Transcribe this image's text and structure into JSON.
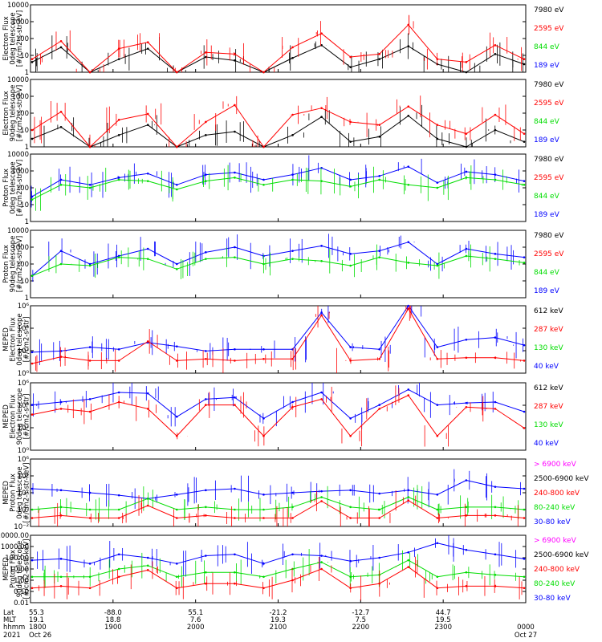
{
  "chart_data": {
    "type": "line",
    "x_range": [
      "1800 Oct 26",
      "0000 Oct 27"
    ],
    "x_ticks": [
      "1800",
      "1900",
      "2000",
      "2100",
      "2200",
      "2300",
      "0000"
    ],
    "panels": [
      {
        "ylabel": [
          "Electron Flux",
          "0deg telescope",
          "[#/cm2-s-str-eV]"
        ],
        "yscale": "log",
        "ylim": [
          1,
          10000
        ],
        "yticks": [
          "10000",
          "1000",
          "100",
          "10",
          "1"
        ],
        "legend": [
          {
            "name": "7980 eV",
            "color": "#000000"
          },
          {
            "name": "2595 eV",
            "color": "#ff0000"
          },
          {
            "name": "844 eV",
            "color": "#00dd00"
          },
          {
            "name": "189 eV",
            "color": "#0000ff"
          }
        ],
        "series": [
          {
            "name": "7980 eV",
            "color": "#000000",
            "values": [
              4,
              30,
              0,
              6,
              25,
              0,
              8,
              5,
              0,
              7,
              40,
              2,
              6,
              35,
              3,
              1,
              12,
              3
            ]
          },
          {
            "name": "2595 eV",
            "color": "#ff0000",
            "values": [
              6,
              70,
              0,
              25,
              60,
              0,
              15,
              12,
              0,
              30,
              200,
              8,
              12,
              650,
              6,
              4,
              40,
              6
            ]
          }
        ]
      },
      {
        "ylabel": [
          "Electron Flux",
          "90deg telescope",
          "[#/cm2-s-str-eV]"
        ],
        "yscale": "log",
        "ylim": [
          1,
          10000
        ],
        "yticks": [
          "10000",
          "1000",
          "100",
          "10",
          "1"
        ],
        "legend": [
          {
            "name": "7980 eV",
            "color": "#000000"
          },
          {
            "name": "2595 eV",
            "color": "#ff0000"
          },
          {
            "name": "844 eV",
            "color": "#00dd00"
          },
          {
            "name": "189 eV",
            "color": "#0000ff"
          }
        ],
        "series": [
          {
            "name": "7980 eV",
            "color": "#000000",
            "values": [
              3,
              15,
              0,
              5,
              20,
              0,
              5,
              8,
              0,
              5,
              60,
              2,
              4,
              70,
              3,
              1,
              10,
              2
            ]
          },
          {
            "name": "2595 eV",
            "color": "#ff0000",
            "values": [
              10,
              120,
              0,
              40,
              90,
              0,
              30,
              300,
              0,
              80,
              200,
              30,
              20,
              250,
              20,
              6,
              80,
              6
            ]
          }
        ]
      },
      {
        "ylabel": [
          "Proton Flux",
          "0deg telescope",
          "[#/cm2-s-str-eV]"
        ],
        "yscale": "log",
        "ylim": [
          1,
          10000
        ],
        "yticks": [
          "10000",
          "1000",
          "100",
          "10",
          "1"
        ],
        "legend": [
          {
            "name": "7980 eV",
            "color": "#000000"
          },
          {
            "name": "2595 eV",
            "color": "#ff0000"
          },
          {
            "name": "844 eV",
            "color": "#00dd00"
          },
          {
            "name": "189 eV",
            "color": "#0000ff"
          }
        ],
        "series": [
          {
            "name": "189 eV",
            "color": "#0000ff",
            "values": [
              30,
              300,
              150,
              400,
              700,
              150,
              600,
              800,
              300,
              600,
              1500,
              300,
              500,
              1800,
              200,
              900,
              600,
              250
            ]
          },
          {
            "name": "844 eV",
            "color": "#00dd00",
            "values": [
              20,
              150,
              100,
              300,
              250,
              80,
              250,
              400,
              150,
              300,
              250,
              120,
              300,
              150,
              100,
              400,
              300,
              150
            ]
          }
        ]
      },
      {
        "ylabel": [
          "Proton Flux",
          "90deg telescope",
          "[#/cm2-s-str-eV]"
        ],
        "yscale": "log",
        "ylim": [
          1,
          10000
        ],
        "yticks": [
          "10000",
          "1000",
          "100",
          "10",
          "1"
        ],
        "legend": [
          {
            "name": "7980 eV",
            "color": "#000000"
          },
          {
            "name": "2595 eV",
            "color": "#ff0000"
          },
          {
            "name": "844 eV",
            "color": "#00dd00"
          },
          {
            "name": "189 eV",
            "color": "#0000ff"
          }
        ],
        "series": [
          {
            "name": "189 eV",
            "color": "#0000ff",
            "values": [
              20,
              600,
              100,
              300,
              800,
              100,
              500,
              1000,
              300,
              600,
              1200,
              400,
              600,
              2000,
              100,
              800,
              400,
              250
            ]
          },
          {
            "name": "844 eV",
            "color": "#00dd00",
            "values": [
              20,
              100,
              80,
              250,
              200,
              50,
              200,
              250,
              100,
              200,
              150,
              80,
              250,
              120,
              80,
              300,
              200,
              120
            ]
          }
        ]
      },
      {
        "ylabel": [
          "MEPED",
          "Electron Flux",
          "0deg telescope",
          "[#/cm2-s-str]"
        ],
        "yscale": "log",
        "ylim": [
          1,
          10000000
        ],
        "yticks": [
          "10⁶",
          "10⁴",
          "10²",
          "10⁰"
        ],
        "legend": [
          {
            "name": "612 keV",
            "color": "#000000"
          },
          {
            "name": "287 keV",
            "color": "#ff0000"
          },
          {
            "name": "130 keV",
            "color": "#00dd00"
          },
          {
            "name": "40 keV",
            "color": "#0000ff"
          }
        ],
        "series": [
          {
            "name": "40 keV",
            "color": "#0000ff",
            "values": [
              150,
              200,
              500,
              300,
              1500,
              600,
              200,
              300,
              300,
              300,
              2000000,
              500,
              300,
              10000000,
              500,
              3000,
              5000,
              800
            ]
          },
          {
            "name": "287 keV",
            "color": "#ff0000",
            "values": [
              10,
              50,
              20,
              20,
              2000,
              20,
              30,
              20,
              30,
              30,
              1000000,
              20,
              30,
              5000000,
              30,
              40,
              40,
              20
            ]
          }
        ]
      },
      {
        "ylabel": [
          "MEPED",
          "Electron Flux",
          "90deg telescope",
          "[#/cm2-s-str]"
        ],
        "yscale": "log",
        "ylim": [
          1,
          10000000
        ],
        "yticks": [
          "10⁶",
          "10⁴",
          "10²",
          "10⁰"
        ],
        "legend": [
          {
            "name": "612 keV",
            "color": "#000000"
          },
          {
            "name": "287 keV",
            "color": "#ff0000"
          },
          {
            "name": "130 keV",
            "color": "#00dd00"
          },
          {
            "name": "40 keV",
            "color": "#0000ff"
          }
        ],
        "series": [
          {
            "name": "40 keV",
            "color": "#0000ff",
            "values": [
              50000,
              100000,
              200000,
              1000000,
              800000,
              3000,
              200000,
              300000,
              2000,
              100000,
              1000000,
              2000,
              50000,
              2000000,
              50000,
              80000,
              100000,
              10000
            ]
          },
          {
            "name": "287 keV",
            "color": "#ff0000",
            "values": [
              5000,
              20000,
              10000,
              100000,
              20000,
              30,
              50000,
              50000,
              30,
              30000,
              200000,
              30,
              20000,
              500000,
              30,
              30000,
              20000,
              200
            ]
          }
        ]
      },
      {
        "ylabel": [
          "MEPED",
          "Proton Flux",
          "0deg telescope",
          "[#/cm2-s-str-keV]"
        ],
        "yscale": "log",
        "ylim": [
          0.01,
          1000000
        ],
        "yticks": [
          "10⁶",
          "10⁴",
          "10²",
          "10⁰",
          "10⁻²"
        ],
        "legend": [
          {
            "name": "> 6900 keV",
            "color": "#ff00ff"
          },
          {
            "name": "2500-6900 keV",
            "color": "#000000"
          },
          {
            "name": "240-800 keV",
            "color": "#ff0000"
          },
          {
            "name": "80-240 keV",
            "color": "#00dd00"
          },
          {
            "name": "30-80 keV",
            "color": "#0000ff"
          }
        ],
        "series": [
          {
            "name": "30-80 keV",
            "color": "#0000ff",
            "values": [
              300,
              200,
              100,
              50,
              20,
              60,
              200,
              300,
              60,
              100,
              150,
              200,
              80,
              200,
              60,
              3000,
              500,
              300
            ]
          },
          {
            "name": "80-240 keV",
            "color": "#00dd00",
            "values": [
              1,
              2,
              1,
              1,
              20,
              1,
              2,
              1,
              1,
              2,
              30,
              2,
              1,
              30,
              1,
              2,
              2,
              1
            ]
          },
          {
            "name": "240-800 keV",
            "color": "#ff0000",
            "values": [
              0.1,
              0.2,
              0.1,
              0.1,
              3,
              0.1,
              0.2,
              0.1,
              0.1,
              0.1,
              10,
              0.1,
              0.1,
              12,
              0.1,
              0.2,
              0.2,
              0.1
            ]
          }
        ]
      },
      {
        "ylabel": [
          "MEPED",
          "Proton Flux",
          "90deg telescope",
          "[#/cm2-s-str-keV]"
        ],
        "yscale": "log",
        "ylim": [
          0.01,
          10000
        ],
        "yticks": [
          "10000.00",
          "1000.00",
          "100.00",
          "10.00",
          "1.00",
          "0.10",
          "0.01"
        ],
        "legend": [
          {
            "name": "> 6900 keV",
            "color": "#ff00ff"
          },
          {
            "name": "2500-6900 keV",
            "color": "#000000"
          },
          {
            "name": "240-800 keV",
            "color": "#ff0000"
          },
          {
            "name": "80-240 keV",
            "color": "#00dd00"
          },
          {
            "name": "30-80 keV",
            "color": "#0000ff"
          }
        ],
        "series": [
          {
            "name": "30-80 keV",
            "color": "#0000ff",
            "values": [
              60,
              80,
              30,
              200,
              100,
              30,
              150,
              200,
              30,
              200,
              150,
              50,
              100,
              300,
              2000,
              500,
              200,
              80
            ]
          },
          {
            "name": "80-240 keV",
            "color": "#00dd00",
            "values": [
              2,
              2,
              2,
              10,
              20,
              2,
              5,
              5,
              2,
              10,
              40,
              2,
              3,
              60,
              2,
              5,
              3,
              2
            ]
          },
          {
            "name": "240-800 keV",
            "color": "#ff0000",
            "values": [
              0.2,
              0.3,
              0.2,
              2,
              8,
              0.2,
              0.5,
              0.5,
              0.2,
              1,
              10,
              0.2,
              0.5,
              15,
              0.2,
              0.3,
              0.3,
              0.2
            ]
          }
        ]
      }
    ],
    "x_annotation_rows": [
      {
        "label": "Lat",
        "values": [
          "55.3",
          "-88.0",
          "55.1",
          "-21.2",
          "-12.7",
          "44.7",
          ""
        ]
      },
      {
        "label": "MLT",
        "values": [
          "19.1",
          "18.8",
          "7.6",
          "19.3",
          "7.5",
          "19.5",
          ""
        ]
      },
      {
        "label": "hhmm",
        "values": [
          "1800",
          "1900",
          "2000",
          "2100",
          "2200",
          "2300",
          "0000"
        ]
      },
      {
        "label": "2021",
        "values": [
          "Oct 26",
          "",
          "",
          "",
          "",
          "",
          "Oct 27"
        ]
      }
    ]
  }
}
